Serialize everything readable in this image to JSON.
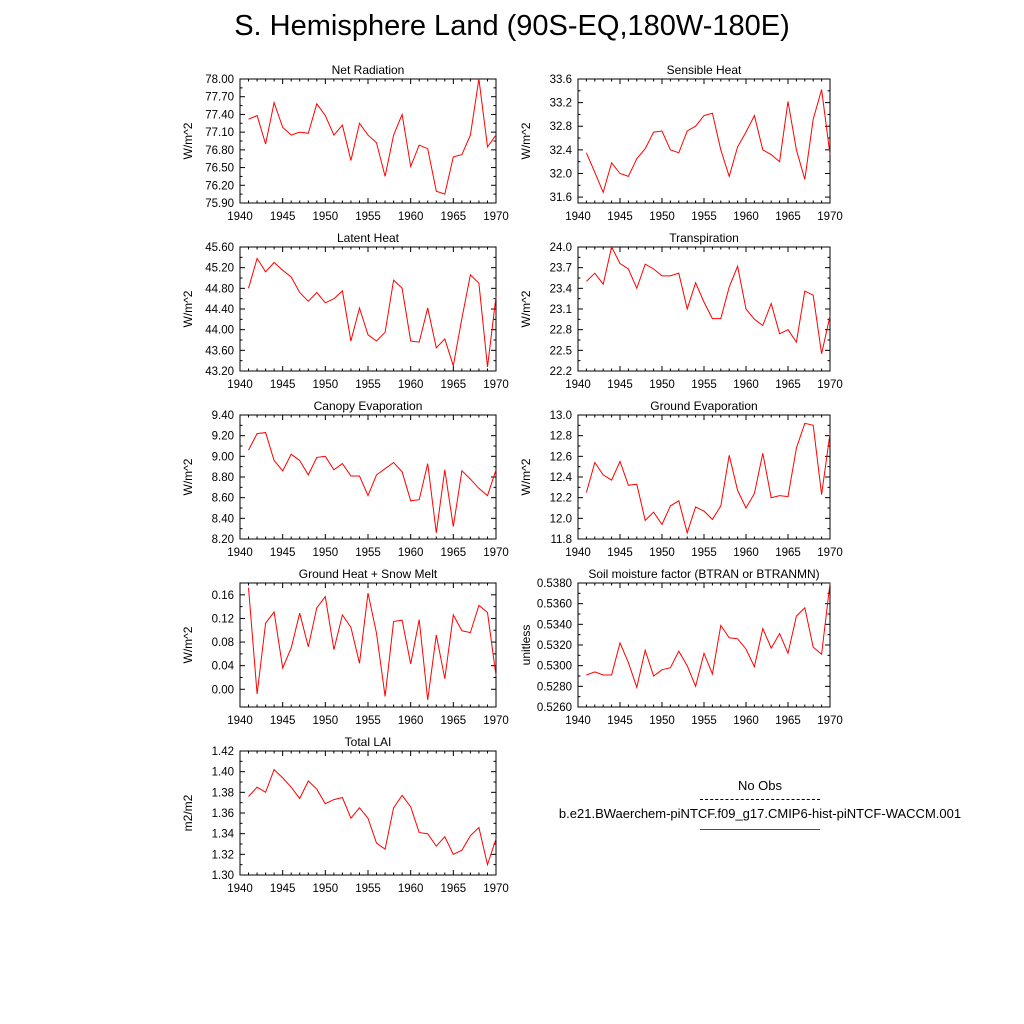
{
  "figure": {
    "title": "S. Hemisphere Land (90S-EQ,180W-180E)"
  },
  "legend": {
    "obs_label": "No Obs",
    "case_label": "b.e21.BWaerchem-piNTCF.f09_g17.CMIP6-hist-piNTCF-WACCM.001",
    "obs_color": "#000000",
    "case_color": "#ff0000"
  },
  "chart_data": [
    {
      "type": "line",
      "title": "Net Radiation",
      "ylabel": "W/m^2",
      "xlim": [
        1940,
        1970
      ],
      "ylim": [
        75.9,
        78.0
      ],
      "xticks": [
        "1940",
        "1945",
        "1950",
        "1955",
        "1960",
        "1965",
        "1970"
      ],
      "yticks": [
        "75.90",
        "76.20",
        "76.50",
        "76.80",
        "77.10",
        "77.40",
        "77.70",
        "78.00"
      ],
      "x": [
        1941,
        1942,
        1943,
        1944,
        1945,
        1946,
        1947,
        1948,
        1949,
        1950,
        1951,
        1952,
        1953,
        1954,
        1955,
        1956,
        1957,
        1958,
        1959,
        1960,
        1961,
        1962,
        1963,
        1964,
        1965,
        1966,
        1967,
        1968,
        1969,
        1970
      ],
      "series": [
        {
          "color": "#ff0000",
          "values": [
            77.32,
            77.38,
            76.9,
            77.6,
            77.18,
            77.05,
            77.1,
            77.08,
            77.58,
            77.38,
            77.05,
            77.22,
            76.62,
            77.25,
            77.05,
            76.92,
            76.35,
            77.05,
            77.4,
            76.52,
            76.88,
            76.82,
            76.1,
            76.05,
            76.68,
            76.72,
            77.05,
            78.0,
            76.85,
            77.05
          ]
        }
      ]
    },
    {
      "type": "line",
      "title": "Sensible Heat",
      "ylabel": "W/m^2",
      "xlim": [
        1940,
        1970
      ],
      "ylim": [
        31.5,
        33.6
      ],
      "xticks": [
        "1940",
        "1945",
        "1950",
        "1955",
        "1960",
        "1965",
        "1970"
      ],
      "yticks": [
        "31.6",
        "32.0",
        "32.4",
        "32.8",
        "33.2",
        "33.6"
      ],
      "x": [
        1941,
        1942,
        1943,
        1944,
        1945,
        1946,
        1947,
        1948,
        1949,
        1950,
        1951,
        1952,
        1953,
        1954,
        1955,
        1956,
        1957,
        1958,
        1959,
        1960,
        1961,
        1962,
        1963,
        1964,
        1965,
        1966,
        1967,
        1968,
        1969,
        1970
      ],
      "series": [
        {
          "color": "#ff0000",
          "values": [
            32.35,
            32.02,
            31.68,
            32.18,
            32.0,
            31.95,
            32.25,
            32.42,
            32.7,
            32.72,
            32.4,
            32.35,
            32.72,
            32.8,
            32.98,
            33.02,
            32.4,
            31.95,
            32.45,
            32.7,
            32.98,
            32.4,
            32.32,
            32.2,
            33.22,
            32.4,
            31.9,
            32.92,
            33.42,
            32.32
          ]
        }
      ]
    },
    {
      "type": "line",
      "title": "Latent Heat",
      "ylabel": "W/m^2",
      "xlim": [
        1940,
        1970
      ],
      "ylim": [
        43.2,
        45.6
      ],
      "xticks": [
        "1940",
        "1945",
        "1950",
        "1955",
        "1960",
        "1965",
        "1970"
      ],
      "yticks": [
        "43.20",
        "43.60",
        "44.00",
        "44.40",
        "44.80",
        "45.20",
        "45.60"
      ],
      "x": [
        1941,
        1942,
        1943,
        1944,
        1945,
        1946,
        1947,
        1948,
        1949,
        1950,
        1951,
        1952,
        1953,
        1954,
        1955,
        1956,
        1957,
        1958,
        1959,
        1960,
        1961,
        1962,
        1963,
        1964,
        1965,
        1966,
        1967,
        1968,
        1969,
        1970
      ],
      "series": [
        {
          "color": "#ff0000",
          "values": [
            44.8,
            45.38,
            45.12,
            45.3,
            45.15,
            45.02,
            44.72,
            44.55,
            44.72,
            44.52,
            44.6,
            44.75,
            43.78,
            44.42,
            43.9,
            43.78,
            43.95,
            44.96,
            44.8,
            43.78,
            43.76,
            44.42,
            43.65,
            43.82,
            43.3,
            44.22,
            45.06,
            44.9,
            43.28,
            44.64
          ]
        }
      ]
    },
    {
      "type": "line",
      "title": "Transpiration",
      "ylabel": "W/m^2",
      "xlim": [
        1940,
        1970
      ],
      "ylim": [
        22.2,
        24.0
      ],
      "xticks": [
        "1940",
        "1945",
        "1950",
        "1955",
        "1960",
        "1965",
        "1970"
      ],
      "yticks": [
        "22.2",
        "22.5",
        "22.8",
        "23.1",
        "23.4",
        "23.7",
        "24.0"
      ],
      "x": [
        1941,
        1942,
        1943,
        1944,
        1945,
        1946,
        1947,
        1948,
        1949,
        1950,
        1951,
        1952,
        1953,
        1954,
        1955,
        1956,
        1957,
        1958,
        1959,
        1960,
        1961,
        1962,
        1963,
        1964,
        1965,
        1966,
        1967,
        1968,
        1969,
        1970
      ],
      "series": [
        {
          "color": "#ff0000",
          "values": [
            23.5,
            23.62,
            23.46,
            24.0,
            23.76,
            23.68,
            23.4,
            23.75,
            23.68,
            23.58,
            23.58,
            23.62,
            23.1,
            23.48,
            23.2,
            22.96,
            22.96,
            23.42,
            23.72,
            23.1,
            22.95,
            22.86,
            23.18,
            22.74,
            22.8,
            22.62,
            23.36,
            23.3,
            22.45,
            23.0
          ]
        }
      ]
    },
    {
      "type": "line",
      "title": "Canopy Evaporation",
      "ylabel": "W/m^2",
      "xlim": [
        1940,
        1970
      ],
      "ylim": [
        8.2,
        9.4
      ],
      "xticks": [
        "1940",
        "1945",
        "1950",
        "1955",
        "1960",
        "1965",
        "1970"
      ],
      "yticks": [
        "8.20",
        "8.40",
        "8.60",
        "8.80",
        "9.00",
        "9.20",
        "9.40"
      ],
      "x": [
        1941,
        1942,
        1943,
        1944,
        1945,
        1946,
        1947,
        1948,
        1949,
        1950,
        1951,
        1952,
        1953,
        1954,
        1955,
        1956,
        1957,
        1958,
        1959,
        1960,
        1961,
        1962,
        1963,
        1964,
        1965,
        1966,
        1967,
        1968,
        1969,
        1970
      ],
      "series": [
        {
          "color": "#ff0000",
          "values": [
            9.06,
            9.22,
            9.23,
            8.96,
            8.86,
            9.02,
            8.96,
            8.82,
            8.99,
            9.0,
            8.87,
            8.93,
            8.81,
            8.81,
            8.62,
            8.82,
            8.88,
            8.94,
            8.85,
            8.57,
            8.58,
            8.93,
            8.26,
            8.87,
            8.32,
            8.86,
            8.78,
            8.69,
            8.62,
            8.87
          ]
        }
      ]
    },
    {
      "type": "line",
      "title": "Ground Evaporation",
      "ylabel": "W/m^2",
      "xlim": [
        1940,
        1970
      ],
      "ylim": [
        11.8,
        13.0
      ],
      "xticks": [
        "1940",
        "1945",
        "1950",
        "1955",
        "1960",
        "1965",
        "1970"
      ],
      "yticks": [
        "11.8",
        "12.0",
        "12.2",
        "12.4",
        "12.6",
        "12.8",
        "13.0"
      ],
      "x": [
        1941,
        1942,
        1943,
        1944,
        1945,
        1946,
        1947,
        1948,
        1949,
        1950,
        1951,
        1952,
        1953,
        1954,
        1955,
        1956,
        1957,
        1958,
        1959,
        1960,
        1961,
        1962,
        1963,
        1964,
        1965,
        1966,
        1967,
        1968,
        1969,
        1970
      ],
      "series": [
        {
          "color": "#ff0000",
          "values": [
            12.25,
            12.54,
            12.42,
            12.37,
            12.55,
            12.32,
            12.33,
            11.98,
            12.06,
            11.94,
            12.12,
            12.17,
            11.86,
            12.11,
            12.07,
            11.99,
            12.12,
            12.61,
            12.27,
            12.1,
            12.24,
            12.63,
            12.2,
            12.22,
            12.21,
            12.68,
            12.92,
            12.9,
            12.23,
            12.82
          ]
        }
      ]
    },
    {
      "type": "line",
      "title": "Ground Heat + Snow Melt",
      "ylabel": "W/m^2",
      "xlim": [
        1940,
        1970
      ],
      "ylim": [
        -0.03,
        0.18
      ],
      "xticks": [
        "1940",
        "1945",
        "1950",
        "1955",
        "1960",
        "1965",
        "1970"
      ],
      "yticks": [
        "0.00",
        "0.04",
        "0.08",
        "0.12",
        "0.16"
      ],
      "ytick_values": [
        0.0,
        0.04,
        0.08,
        0.12,
        0.16
      ],
      "x": [
        1941,
        1942,
        1943,
        1944,
        1945,
        1946,
        1947,
        1948,
        1949,
        1950,
        1951,
        1952,
        1953,
        1954,
        1955,
        1956,
        1957,
        1958,
        1959,
        1960,
        1961,
        1962,
        1963,
        1964,
        1965,
        1966,
        1967,
        1968,
        1969,
        1970
      ],
      "series": [
        {
          "color": "#ff0000",
          "values": [
            0.172,
            -0.008,
            0.112,
            0.131,
            0.036,
            0.07,
            0.129,
            0.072,
            0.138,
            0.157,
            0.067,
            0.126,
            0.105,
            0.044,
            0.163,
            0.095,
            -0.012,
            0.115,
            0.117,
            0.043,
            0.118,
            -0.018,
            0.092,
            0.018,
            0.126,
            0.099,
            0.096,
            0.142,
            0.13,
            0.023
          ]
        }
      ]
    },
    {
      "type": "line",
      "title": "Soil moisture factor (BTRAN or BTRANMN)",
      "ylabel": "unitless",
      "xlim": [
        1940,
        1970
      ],
      "ylim": [
        0.526,
        0.538
      ],
      "xticks": [
        "1940",
        "1945",
        "1950",
        "1955",
        "1960",
        "1965",
        "1970"
      ],
      "yticks": [
        "0.5260",
        "0.5280",
        "0.5300",
        "0.5320",
        "0.5340",
        "0.5360",
        "0.5380"
      ],
      "x": [
        1941,
        1942,
        1943,
        1944,
        1945,
        1946,
        1947,
        1948,
        1949,
        1950,
        1951,
        1952,
        1953,
        1954,
        1955,
        1956,
        1957,
        1958,
        1959,
        1960,
        1961,
        1962,
        1963,
        1964,
        1965,
        1966,
        1967,
        1968,
        1969,
        1970
      ],
      "series": [
        {
          "color": "#ff0000",
          "values": [
            0.5291,
            0.5294,
            0.5291,
            0.5291,
            0.5322,
            0.5303,
            0.5279,
            0.5315,
            0.529,
            0.5296,
            0.5298,
            0.5314,
            0.53,
            0.528,
            0.5312,
            0.5292,
            0.5339,
            0.5327,
            0.5326,
            0.5316,
            0.5299,
            0.5336,
            0.5317,
            0.5331,
            0.5312,
            0.5348,
            0.5356,
            0.5318,
            0.5311,
            0.538
          ]
        }
      ]
    },
    {
      "type": "line",
      "title": "Total LAI",
      "ylabel": "m2/m2",
      "xlim": [
        1940,
        1970
      ],
      "ylim": [
        1.3,
        1.42
      ],
      "xticks": [
        "1940",
        "1945",
        "1950",
        "1955",
        "1960",
        "1965",
        "1970"
      ],
      "yticks": [
        "1.30",
        "1.32",
        "1.34",
        "1.36",
        "1.38",
        "1.40",
        "1.42"
      ],
      "x": [
        1941,
        1942,
        1943,
        1944,
        1945,
        1946,
        1947,
        1948,
        1949,
        1950,
        1951,
        1952,
        1953,
        1954,
        1955,
        1956,
        1957,
        1958,
        1959,
        1960,
        1961,
        1962,
        1963,
        1964,
        1965,
        1966,
        1967,
        1968,
        1969,
        1970
      ],
      "series": [
        {
          "color": "#ff0000",
          "values": [
            1.376,
            1.385,
            1.38,
            1.402,
            1.394,
            1.385,
            1.374,
            1.391,
            1.383,
            1.369,
            1.373,
            1.375,
            1.355,
            1.365,
            1.355,
            1.331,
            1.325,
            1.365,
            1.377,
            1.366,
            1.341,
            1.34,
            1.328,
            1.337,
            1.32,
            1.324,
            1.338,
            1.346,
            1.31,
            1.335
          ]
        }
      ]
    }
  ]
}
